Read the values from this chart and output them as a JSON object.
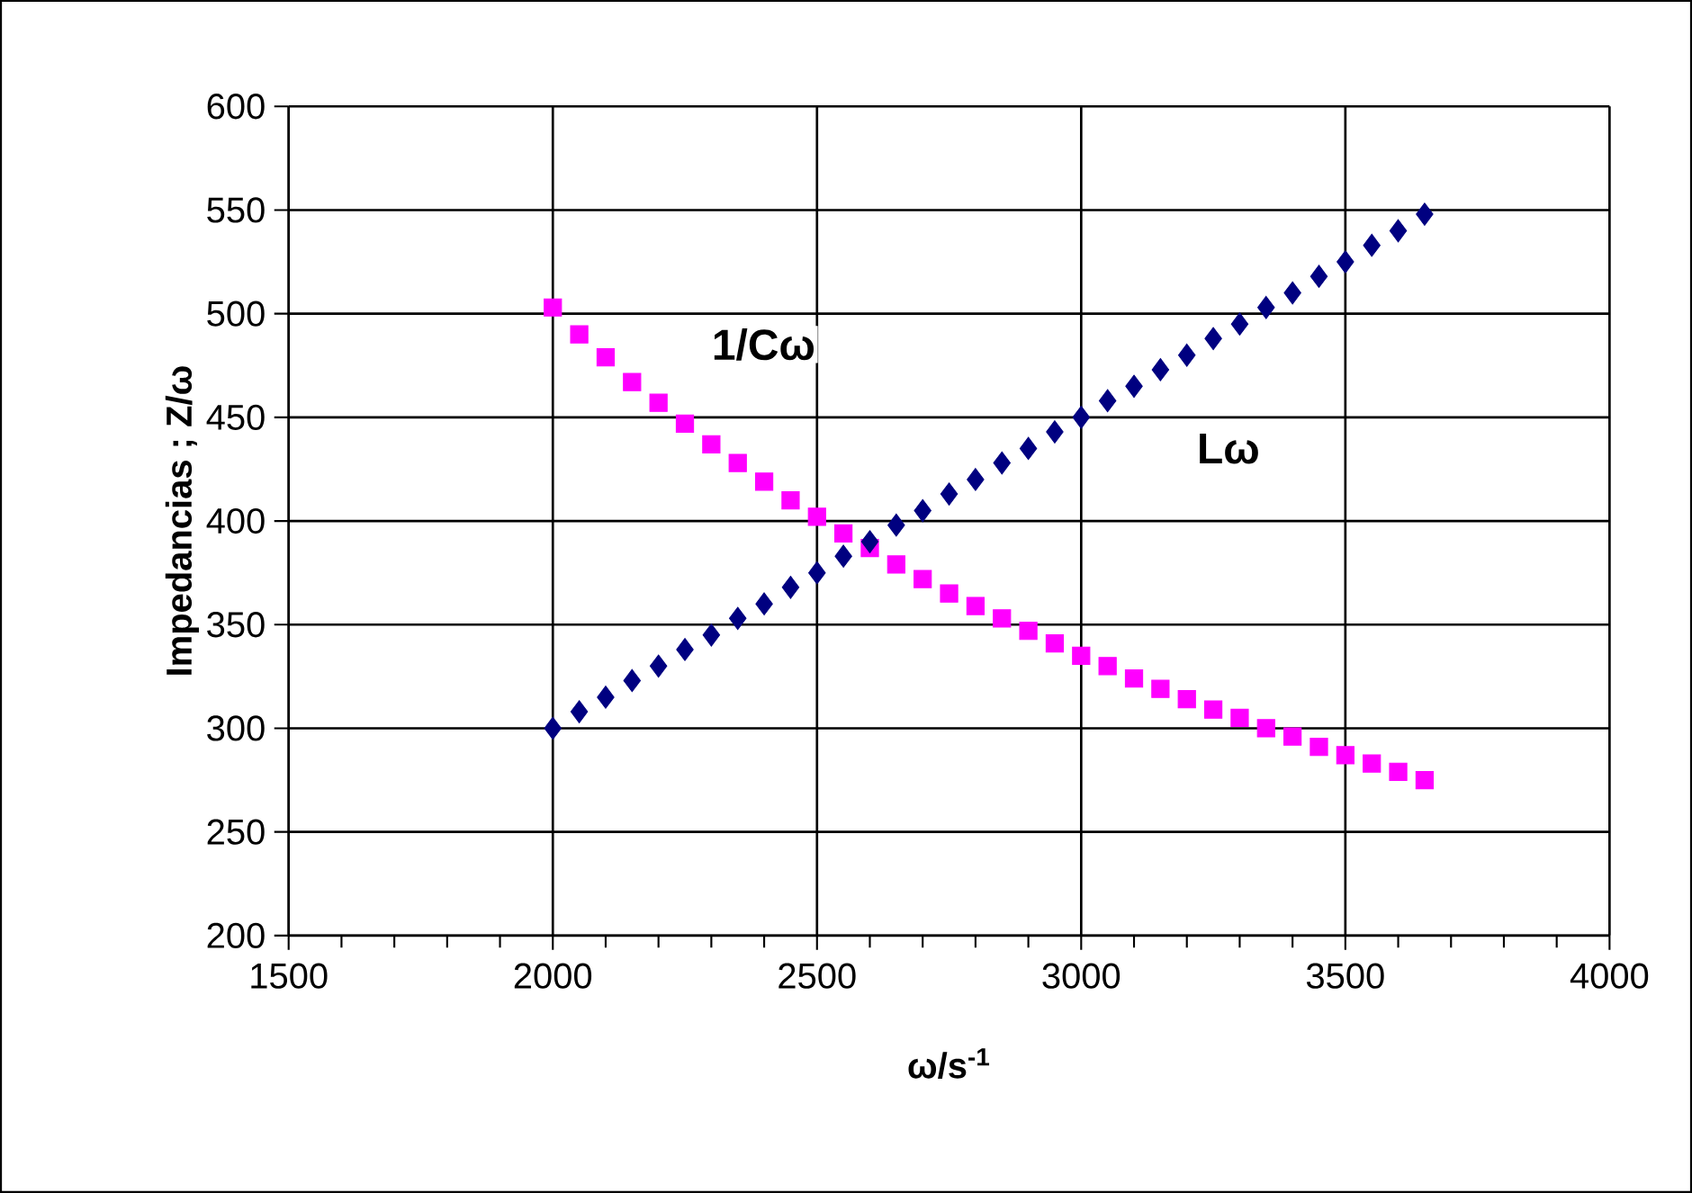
{
  "chart_data": {
    "type": "scatter",
    "xlabel": "ω/s$^{-1}$",
    "ylabel": "Impedancias ; Z/ω",
    "x": [
      2000,
      2050,
      2100,
      2150,
      2200,
      2250,
      2300,
      2350,
      2400,
      2450,
      2500,
      2550,
      2600,
      2650,
      2700,
      2750,
      2800,
      2850,
      2900,
      2950,
      3000,
      3050,
      3100,
      3150,
      3200,
      3250,
      3300,
      3350,
      3400,
      3450,
      3500,
      3550,
      3600,
      3650
    ],
    "series": [
      {
        "name": "1/Cω",
        "color": "#ff00ff",
        "marker": "square",
        "values": [
          503,
          490,
          479,
          467,
          457,
          447,
          437,
          428,
          419,
          410,
          402,
          394,
          387,
          379,
          372,
          365,
          359,
          353,
          347,
          341,
          335,
          330,
          324,
          319,
          314,
          309,
          305,
          300,
          296,
          291,
          287,
          283,
          279,
          275
        ]
      },
      {
        "name": "Lω",
        "color": "#000080",
        "marker": "diamond",
        "values": [
          300,
          308,
          315,
          323,
          330,
          338,
          345,
          353,
          360,
          368,
          375,
          383,
          390,
          398,
          405,
          413,
          420,
          428,
          435,
          443,
          450,
          458,
          465,
          473,
          480,
          488,
          495,
          503,
          510,
          518,
          525,
          533,
          540,
          548
        ]
      }
    ],
    "xlim": [
      1500,
      4000
    ],
    "xticks": [
      1500,
      2000,
      2500,
      3000,
      3500,
      4000
    ],
    "ylim": [
      200,
      600
    ],
    "yticks": [
      200,
      250,
      300,
      350,
      400,
      450,
      500,
      550,
      600
    ],
    "grid": true,
    "legend": false
  }
}
